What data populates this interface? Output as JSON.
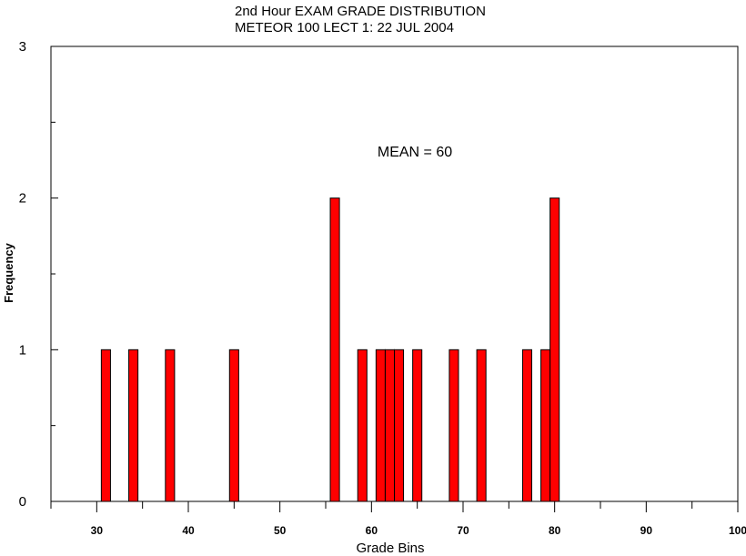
{
  "chart_data": {
    "type": "bar",
    "title": "2nd Hour EXAM GRADE DISTRIBUTION",
    "subtitle": "METEOR 100 LECT 1: 22 JUL 2004",
    "xlabel": "Grade Bins",
    "ylabel": "Frequency",
    "xlim": [
      25,
      100
    ],
    "ylim": [
      0,
      3
    ],
    "x_ticks": [
      30,
      40,
      50,
      60,
      70,
      80,
      90,
      100
    ],
    "y_ticks": [
      0,
      1,
      2,
      3
    ],
    "annotation": "MEAN = 60",
    "bar_color": "#ff0000",
    "grid": false,
    "bins": [
      31,
      34,
      38,
      45,
      56,
      59,
      61,
      62,
      63,
      65,
      69,
      72,
      77,
      79,
      80
    ],
    "values": [
      1,
      1,
      1,
      1,
      2,
      1,
      1,
      1,
      1,
      1,
      1,
      1,
      1,
      1,
      2
    ]
  }
}
